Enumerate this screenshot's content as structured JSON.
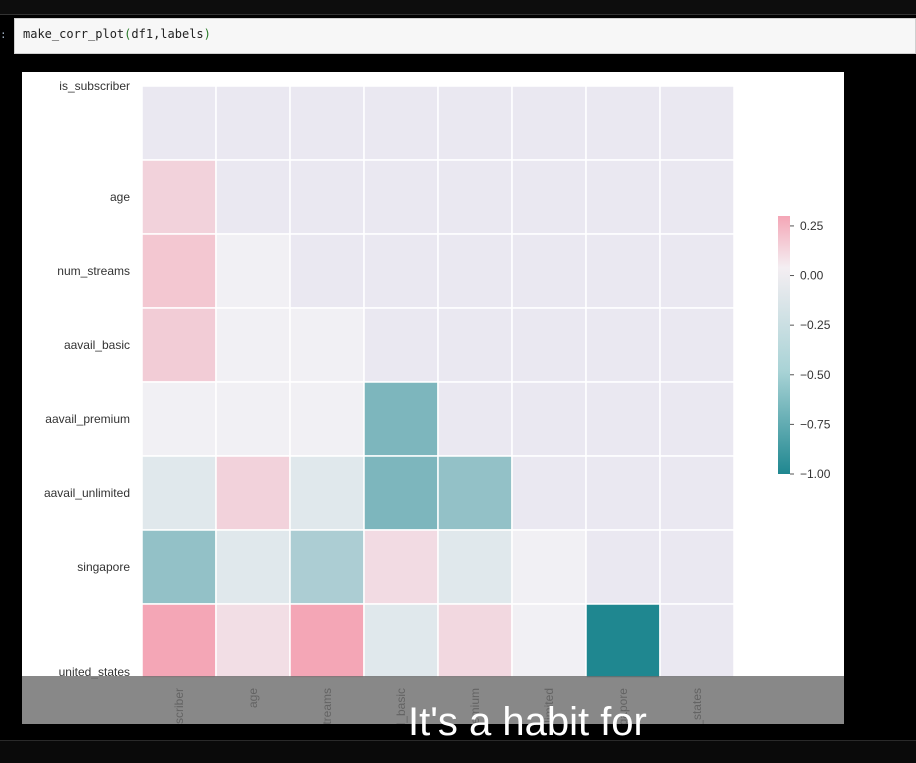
{
  "notebook": {
    "prompt": ":",
    "code": {
      "func": "make_corr_plot",
      "open": "(",
      "args": "df1,labels",
      "close": ")"
    }
  },
  "caption": "It's a habit for",
  "colors": {
    "positive": "#f4a6b6",
    "neutral": "#f1f0f4",
    "negative": "#1f8790"
  },
  "chart_data": {
    "type": "heatmap",
    "title": "",
    "xlabel": "",
    "ylabel": "",
    "row_labels": [
      "is_subscriber",
      "age",
      "num_streams",
      "aavail_basic",
      "aavail_premium",
      "aavail_unlimited",
      "singapore",
      "united_states"
    ],
    "col_labels": [
      "is_subscriber",
      "age",
      "num_streams",
      "aavail_basic",
      "aavail_premium",
      "aavail_unlimited",
      "singapore",
      "united_states"
    ],
    "mask": "upper triangle including diagonal",
    "values": [
      [
        null,
        null,
        null,
        null,
        null,
        null,
        null,
        null
      ],
      [
        0.1,
        null,
        null,
        null,
        null,
        null,
        null,
        null
      ],
      [
        0.14,
        0.0,
        null,
        null,
        null,
        null,
        null,
        null
      ],
      [
        0.12,
        0.0,
        0.0,
        null,
        null,
        null,
        null,
        null
      ],
      [
        0.0,
        0.0,
        0.0,
        -0.55,
        null,
        null,
        null,
        null
      ],
      [
        -0.08,
        0.1,
        -0.08,
        -0.55,
        -0.45,
        null,
        null,
        null
      ],
      [
        -0.45,
        -0.08,
        -0.33,
        0.07,
        -0.08,
        0.0,
        null,
        null
      ],
      [
        0.25,
        0.06,
        0.25,
        -0.08,
        0.08,
        0.0,
        -1.0,
        null
      ]
    ],
    "colorbar": {
      "vmin": -1.0,
      "vmax": 0.3,
      "ticks": [
        0.25,
        0.0,
        -0.25,
        -0.5,
        -0.75,
        -1.0
      ],
      "tick_labels": [
        "0.25",
        "0.00",
        "−0.25",
        "−0.50",
        "−0.75",
        "−1.00"
      ]
    }
  }
}
